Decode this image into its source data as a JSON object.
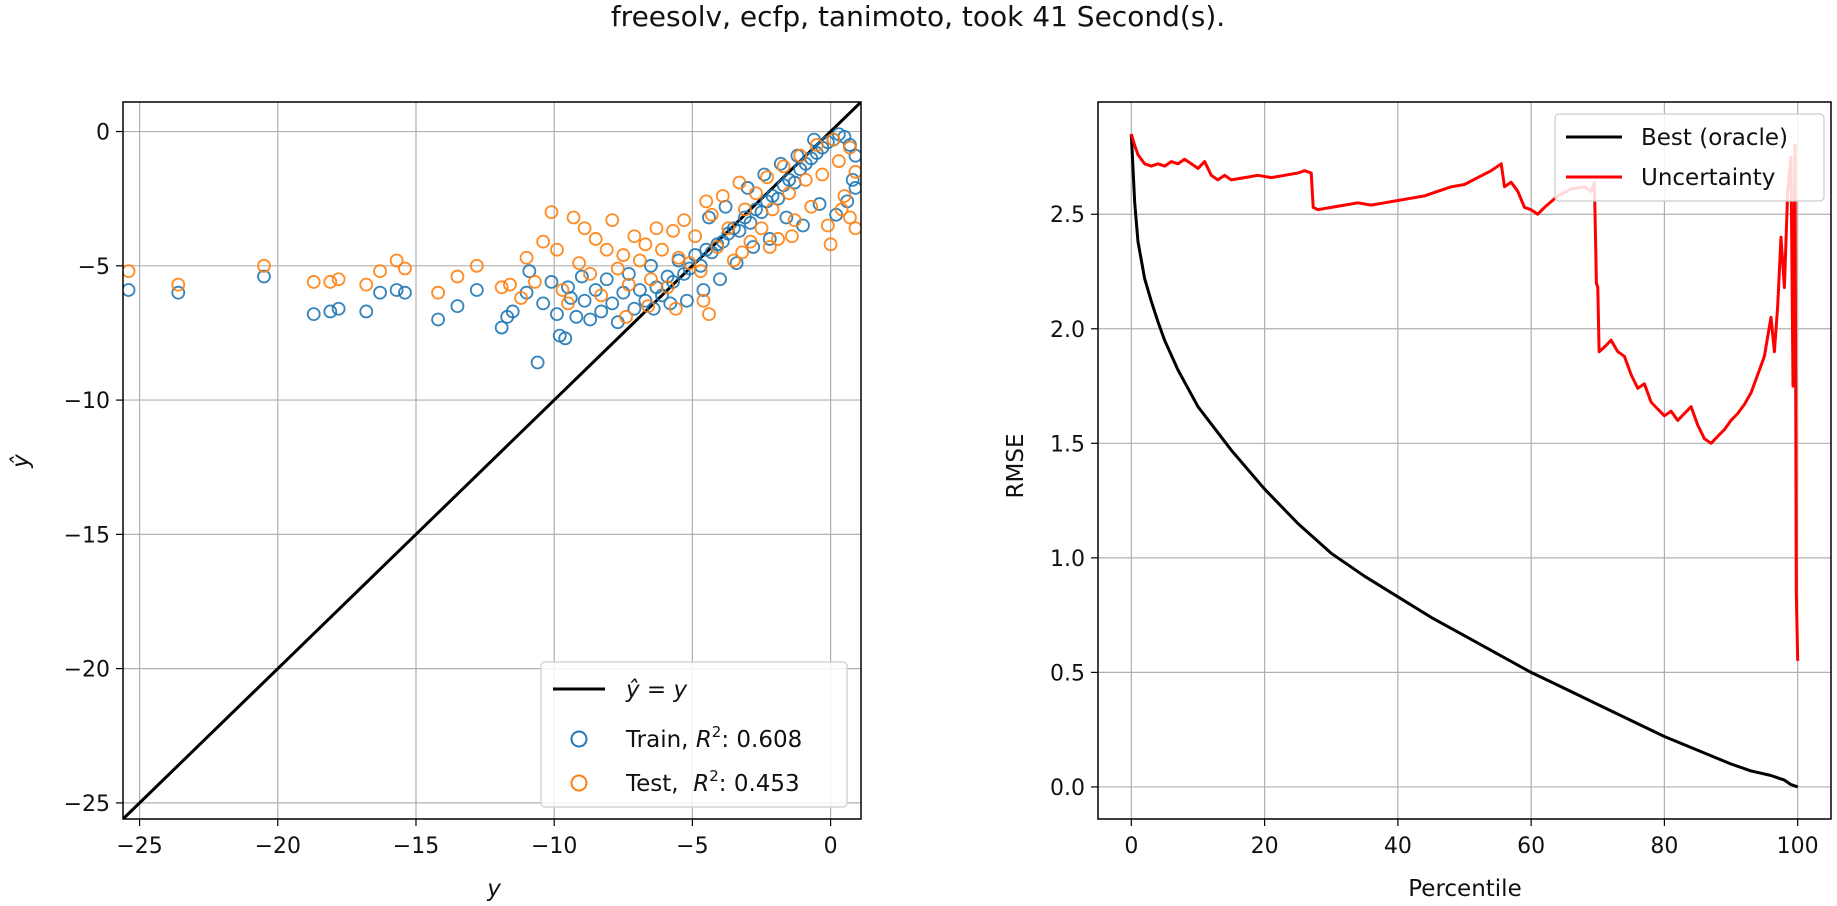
{
  "figure": {
    "title": "freesolv, ecfp, tanimoto, took 41 Second(s)."
  },
  "chart_data": [
    {
      "type": "scatter",
      "xlabel": "y",
      "ylabel": "ŷ",
      "xlim": [
        -25.6,
        1.1
      ],
      "ylim": [
        -25.6,
        1.1
      ],
      "xticks": [
        -25,
        -20,
        -15,
        -10,
        -5,
        0
      ],
      "yticks": [
        0,
        -5,
        -10,
        -15,
        -20,
        -25
      ],
      "grid": true,
      "legend_position": "lower-right",
      "identity_line": {
        "name": "ŷ = y",
        "label_main": "ŷ = y",
        "color": "#000000"
      },
      "series": [
        {
          "name": "Train, R²: 0.608",
          "label_main": "Train, ",
          "label_r": "R",
          "label_sup": "2",
          "label_value": ": 0.608",
          "color": "#1f77b4",
          "points": [
            [
              -25.4,
              -5.9
            ],
            [
              -23.6,
              -6.0
            ],
            [
              -20.5,
              -5.4
            ],
            [
              -18.7,
              -6.8
            ],
            [
              -18.1,
              -6.7
            ],
            [
              -17.8,
              -6.6
            ],
            [
              -16.8,
              -6.7
            ],
            [
              -16.3,
              -6.0
            ],
            [
              -15.7,
              -5.9
            ],
            [
              -15.4,
              -6.0
            ],
            [
              -14.2,
              -7.0
            ],
            [
              -13.5,
              -6.5
            ],
            [
              -12.8,
              -5.9
            ],
            [
              -11.9,
              -7.3
            ],
            [
              -11.7,
              -6.9
            ],
            [
              -11.5,
              -6.7
            ],
            [
              -11.0,
              -6.0
            ],
            [
              -10.9,
              -5.2
            ],
            [
              -10.6,
              -8.6
            ],
            [
              -10.4,
              -6.4
            ],
            [
              -10.1,
              -5.6
            ],
            [
              -9.9,
              -6.8
            ],
            [
              -9.8,
              -7.6
            ],
            [
              -9.6,
              -7.7
            ],
            [
              -9.5,
              -5.8
            ],
            [
              -9.4,
              -6.2
            ],
            [
              -9.2,
              -6.9
            ],
            [
              -9.0,
              -5.4
            ],
            [
              -8.9,
              -6.3
            ],
            [
              -8.7,
              -7.0
            ],
            [
              -8.5,
              -5.9
            ],
            [
              -8.3,
              -6.7
            ],
            [
              -8.1,
              -5.5
            ],
            [
              -7.9,
              -6.4
            ],
            [
              -7.7,
              -7.1
            ],
            [
              -7.5,
              -6.0
            ],
            [
              -7.3,
              -5.3
            ],
            [
              -7.1,
              -6.6
            ],
            [
              -6.9,
              -5.9
            ],
            [
              -6.7,
              -6.3
            ],
            [
              -6.5,
              -5.0
            ],
            [
              -6.3,
              -5.8
            ],
            [
              -6.1,
              -6.1
            ],
            [
              -5.9,
              -5.4
            ],
            [
              -5.7,
              -5.6
            ],
            [
              -5.5,
              -4.8
            ],
            [
              -5.3,
              -5.3
            ],
            [
              -5.1,
              -5.1
            ],
            [
              -4.9,
              -4.6
            ],
            [
              -4.7,
              -5.0
            ],
            [
              -4.5,
              -4.4
            ],
            [
              -4.3,
              -4.5
            ],
            [
              -4.1,
              -4.2
            ],
            [
              -3.9,
              -4.1
            ],
            [
              -3.7,
              -3.8
            ],
            [
              -3.5,
              -3.6
            ],
            [
              -3.3,
              -3.7
            ],
            [
              -3.1,
              -3.2
            ],
            [
              -2.9,
              -3.4
            ],
            [
              -2.7,
              -2.9
            ],
            [
              -2.5,
              -3.0
            ],
            [
              -2.3,
              -2.6
            ],
            [
              -2.1,
              -2.4
            ],
            [
              -1.9,
              -2.5
            ],
            [
              -1.7,
              -2.0
            ],
            [
              -1.5,
              -1.8
            ],
            [
              -1.3,
              -1.9
            ],
            [
              -1.1,
              -1.4
            ],
            [
              -0.9,
              -1.2
            ],
            [
              -0.7,
              -1.0
            ],
            [
              -0.5,
              -0.8
            ],
            [
              -0.3,
              -0.6
            ],
            [
              -0.1,
              -0.4
            ],
            [
              0.1,
              -0.3
            ],
            [
              0.3,
              -0.1
            ],
            [
              0.5,
              -0.2
            ],
            [
              0.7,
              -0.5
            ],
            [
              0.9,
              -0.9
            ],
            [
              0.8,
              -1.8
            ],
            [
              0.6,
              -2.6
            ],
            [
              0.9,
              -2.1
            ],
            [
              0.2,
              -3.1
            ],
            [
              -0.4,
              -2.7
            ],
            [
              -1.0,
              -3.5
            ],
            [
              -1.6,
              -3.2
            ],
            [
              -2.2,
              -4.0
            ],
            [
              -2.8,
              -4.3
            ],
            [
              -3.4,
              -4.9
            ],
            [
              -4.0,
              -5.5
            ],
            [
              -4.6,
              -5.9
            ],
            [
              -5.2,
              -6.3
            ],
            [
              -5.8,
              -6.4
            ],
            [
              -6.4,
              -6.6
            ],
            [
              -4.4,
              -3.2
            ],
            [
              -3.8,
              -2.8
            ],
            [
              -3.0,
              -2.1
            ],
            [
              -2.4,
              -1.6
            ],
            [
              -1.8,
              -1.2
            ],
            [
              -1.2,
              -0.9
            ],
            [
              -0.6,
              -0.3
            ]
          ]
        },
        {
          "name": "Test, R²: 0.453",
          "label_main": "Test,  ",
          "label_r": "R",
          "label_sup": "2",
          "label_value": ": 0.453",
          "color": "#ff7f0e",
          "points": [
            [
              -25.4,
              -5.2
            ],
            [
              -23.6,
              -5.7
            ],
            [
              -20.5,
              -5.0
            ],
            [
              -18.7,
              -5.6
            ],
            [
              -18.1,
              -5.6
            ],
            [
              -17.8,
              -5.5
            ],
            [
              -16.8,
              -5.7
            ],
            [
              -16.3,
              -5.2
            ],
            [
              -15.7,
              -4.8
            ],
            [
              -15.4,
              -5.1
            ],
            [
              -14.2,
              -6.0
            ],
            [
              -13.5,
              -5.4
            ],
            [
              -12.8,
              -5.0
            ],
            [
              -11.9,
              -5.8
            ],
            [
              -11.6,
              -5.7
            ],
            [
              -11.2,
              -6.2
            ],
            [
              -11.0,
              -4.7
            ],
            [
              -10.7,
              -5.6
            ],
            [
              -10.4,
              -4.1
            ],
            [
              -10.1,
              -3.0
            ],
            [
              -9.9,
              -4.4
            ],
            [
              -9.7,
              -5.9
            ],
            [
              -9.5,
              -6.4
            ],
            [
              -9.3,
              -3.2
            ],
            [
              -9.1,
              -4.9
            ],
            [
              -8.9,
              -3.6
            ],
            [
              -8.7,
              -5.3
            ],
            [
              -8.5,
              -4.0
            ],
            [
              -8.3,
              -6.1
            ],
            [
              -8.1,
              -4.4
            ],
            [
              -7.9,
              -3.3
            ],
            [
              -7.7,
              -5.1
            ],
            [
              -7.5,
              -4.6
            ],
            [
              -7.3,
              -5.7
            ],
            [
              -7.1,
              -3.9
            ],
            [
              -6.9,
              -4.8
            ],
            [
              -6.7,
              -4.2
            ],
            [
              -6.5,
              -5.5
            ],
            [
              -6.3,
              -3.6
            ],
            [
              -6.1,
              -4.4
            ],
            [
              -5.9,
              -5.8
            ],
            [
              -5.7,
              -3.7
            ],
            [
              -5.5,
              -4.7
            ],
            [
              -5.3,
              -3.3
            ],
            [
              -5.1,
              -4.9
            ],
            [
              -4.9,
              -3.9
            ],
            [
              -4.7,
              -5.2
            ],
            [
              -4.5,
              -2.6
            ],
            [
              -4.3,
              -3.1
            ],
            [
              -4.1,
              -4.3
            ],
            [
              -3.9,
              -2.4
            ],
            [
              -3.7,
              -3.6
            ],
            [
              -3.5,
              -4.8
            ],
            [
              -3.3,
              -1.9
            ],
            [
              -3.1,
              -2.9
            ],
            [
              -2.9,
              -4.1
            ],
            [
              -2.7,
              -2.3
            ],
            [
              -2.5,
              -3.6
            ],
            [
              -2.3,
              -1.7
            ],
            [
              -2.1,
              -2.9
            ],
            [
              -1.9,
              -4.0
            ],
            [
              -1.7,
              -1.3
            ],
            [
              -1.5,
              -2.3
            ],
            [
              -1.3,
              -3.3
            ],
            [
              -1.1,
              -0.9
            ],
            [
              -0.9,
              -1.8
            ],
            [
              -0.7,
              -2.8
            ],
            [
              -0.5,
              -0.5
            ],
            [
              -0.3,
              -1.6
            ],
            [
              -0.1,
              -3.5
            ],
            [
              0.1,
              -0.3
            ],
            [
              0.3,
              -1.1
            ],
            [
              0.5,
              -2.4
            ],
            [
              0.7,
              -0.6
            ],
            [
              0.9,
              -1.5
            ],
            [
              0.7,
              -3.2
            ],
            [
              0.9,
              -3.6
            ],
            [
              0.4,
              -2.9
            ],
            [
              -4.6,
              -6.3
            ],
            [
              -4.4,
              -6.8
            ],
            [
              -5.6,
              -6.6
            ],
            [
              -6.6,
              -6.5
            ],
            [
              -7.4,
              -6.9
            ],
            [
              -3.2,
              -4.5
            ],
            [
              -2.2,
              -4.3
            ],
            [
              0.0,
              -4.2
            ],
            [
              -1.4,
              -3.9
            ]
          ]
        }
      ]
    },
    {
      "type": "line",
      "xlabel": "Percentile",
      "ylabel": "RMSE",
      "xlim": [
        -5,
        105
      ],
      "ylim": [
        -0.14,
        2.99
      ],
      "xticks": [
        0,
        20,
        40,
        60,
        80,
        100
      ],
      "yticks": [
        0.0,
        0.5,
        1.0,
        1.5,
        2.0,
        2.5
      ],
      "ytick_labels": [
        "0.0",
        "0.5",
        "1.0",
        "1.5",
        "2.0",
        "2.5"
      ],
      "grid": true,
      "legend_position": "upper-right",
      "series": [
        {
          "name": "Best (oracle)",
          "color": "#000000",
          "x": [
            0,
            0.5,
            1,
            2,
            3,
            4,
            5,
            7,
            10,
            15,
            20,
            25,
            30,
            35,
            40,
            45,
            50,
            55,
            60,
            65,
            70,
            75,
            80,
            85,
            90,
            93,
            96,
            98,
            99,
            100
          ],
          "y": [
            2.85,
            2.55,
            2.38,
            2.22,
            2.12,
            2.03,
            1.95,
            1.82,
            1.66,
            1.47,
            1.3,
            1.15,
            1.02,
            0.92,
            0.83,
            0.74,
            0.66,
            0.58,
            0.5,
            0.43,
            0.36,
            0.29,
            0.22,
            0.16,
            0.1,
            0.07,
            0.05,
            0.03,
            0.01,
            0.0
          ]
        },
        {
          "name": "Uncertainty",
          "color": "#ff0000",
          "x": [
            0,
            0.5,
            1,
            1.5,
            2,
            3,
            4,
            5,
            6,
            7,
            8,
            10,
            11,
            12,
            13,
            14,
            15,
            17,
            19,
            21,
            23,
            25,
            26,
            27,
            27.3,
            28,
            30,
            32,
            34,
            36,
            38,
            40,
            42,
            44,
            46,
            48,
            50,
            52,
            54,
            55.5,
            56,
            57,
            58,
            59,
            60,
            61,
            62,
            64,
            66,
            68,
            69,
            69.5,
            69.8,
            70,
            70.2,
            71,
            72,
            73,
            74,
            75,
            76,
            77,
            78,
            79,
            80,
            81,
            82,
            83,
            84,
            85,
            86,
            87,
            88,
            89,
            90,
            91,
            92,
            93,
            94,
            95,
            96,
            96.5,
            97,
            97.5,
            98,
            98.5,
            99,
            99.3,
            99.6,
            99.8,
            100
          ],
          "y": [
            2.85,
            2.8,
            2.76,
            2.74,
            2.72,
            2.71,
            2.72,
            2.71,
            2.73,
            2.72,
            2.74,
            2.7,
            2.73,
            2.67,
            2.65,
            2.67,
            2.65,
            2.66,
            2.67,
            2.66,
            2.67,
            2.68,
            2.69,
            2.68,
            2.53,
            2.52,
            2.53,
            2.54,
            2.55,
            2.54,
            2.55,
            2.56,
            2.57,
            2.58,
            2.6,
            2.62,
            2.63,
            2.66,
            2.69,
            2.72,
            2.62,
            2.64,
            2.6,
            2.53,
            2.52,
            2.5,
            2.53,
            2.58,
            2.61,
            2.62,
            2.6,
            2.64,
            2.2,
            2.18,
            1.9,
            1.92,
            1.95,
            1.9,
            1.88,
            1.8,
            1.74,
            1.76,
            1.68,
            1.65,
            1.62,
            1.64,
            1.6,
            1.63,
            1.66,
            1.58,
            1.52,
            1.5,
            1.53,
            1.56,
            1.6,
            1.63,
            1.67,
            1.72,
            1.8,
            1.88,
            2.05,
            1.9,
            2.1,
            2.4,
            2.18,
            2.6,
            2.75,
            1.75,
            2.8,
            0.85,
            0.55
          ]
        }
      ]
    }
  ]
}
